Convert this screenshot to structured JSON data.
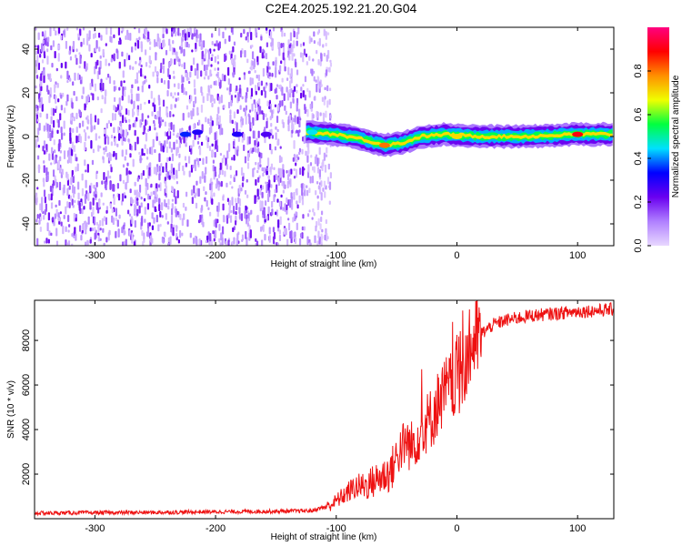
{
  "figure_title": "C2E4.2025.192.21.20.G04",
  "chart_data": [
    {
      "type": "heatmap",
      "xlabel": "Height of straight line (km)",
      "ylabel": "Frequency (Hz)",
      "xlim": [
        -350,
        130
      ],
      "ylim": [
        -50,
        50
      ],
      "x_ticks": [
        -300,
        -200,
        -100,
        0,
        100
      ],
      "y_ticks": [
        -40,
        -20,
        0,
        20,
        40
      ],
      "colorbar": {
        "label": "Normalized spectral amplitude",
        "range": [
          0,
          1
        ],
        "ticks": [
          0.0,
          0.2,
          0.4,
          0.6,
          0.8
        ],
        "colormap": [
          "#e8d8ff",
          "#b080ff",
          "#6a00f0",
          "#0000ff",
          "#00e0ff",
          "#00ff40",
          "#f0ff00",
          "#ff9000",
          "#ff0000",
          "#ff0080"
        ]
      },
      "features": {
        "noise_region_x": [
          -350,
          -125
        ],
        "noise_sparse_x": [
          -125,
          -105
        ],
        "band_start_x": -125,
        "band_center_freq_hz": [
          {
            "x": -125,
            "f": 2
          },
          {
            "x": -100,
            "f": 1
          },
          {
            "x": -80,
            "f": -1
          },
          {
            "x": -60,
            "f": -4
          },
          {
            "x": -45,
            "f": -3
          },
          {
            "x": -30,
            "f": 0
          },
          {
            "x": -10,
            "f": 1
          },
          {
            "x": 20,
            "f": 0
          },
          {
            "x": 60,
            "f": 0
          },
          {
            "x": 100,
            "f": 1
          },
          {
            "x": 130,
            "f": 1
          }
        ],
        "band_halfwidth_hz": 4,
        "peak_spots": [
          {
            "x": -225,
            "f": 1,
            "amp": 0.35
          },
          {
            "x": -215,
            "f": 2,
            "amp": 0.3
          },
          {
            "x": -182,
            "f": 1,
            "amp": 0.3
          },
          {
            "x": -158,
            "f": 1,
            "amp": 0.25
          },
          {
            "x": -120,
            "f": 2,
            "amp": 0.45
          },
          {
            "x": -60,
            "f": -4,
            "amp": 0.8
          },
          {
            "x": 0,
            "f": 0,
            "amp": 0.7
          },
          {
            "x": 100,
            "f": 1,
            "amp": 0.9
          }
        ]
      }
    },
    {
      "type": "line",
      "xlabel": "Height of straight line (km)",
      "ylabel": "SNR (10 * v/v)",
      "xlim": [
        -350,
        130
      ],
      "ylim": [
        0,
        9800
      ],
      "x_ticks": [
        -300,
        -200,
        -100,
        0,
        100
      ],
      "y_ticks": [
        2000,
        4000,
        6000,
        8000
      ],
      "color": "#ee1111",
      "series": [
        {
          "x": [
            -350,
            -300,
            -250,
            -200,
            -150,
            -120,
            -105,
            -95,
            -85,
            -75,
            -65,
            -55,
            -48,
            -42,
            -38,
            -32,
            -25,
            -20,
            -15,
            -10,
            -5,
            0,
            5,
            10,
            15,
            20,
            30,
            40,
            60,
            80,
            100,
            120,
            130
          ],
          "values": [
            250,
            270,
            280,
            310,
            330,
            360,
            600,
            1000,
            1400,
            1500,
            1800,
            2100,
            3000,
            3500,
            3200,
            3800,
            4300,
            4600,
            5300,
            5700,
            5900,
            6300,
            6900,
            7500,
            8000,
            8300,
            8700,
            8900,
            9100,
            9200,
            9300,
            9350,
            9400
          ]
        }
      ]
    }
  ]
}
